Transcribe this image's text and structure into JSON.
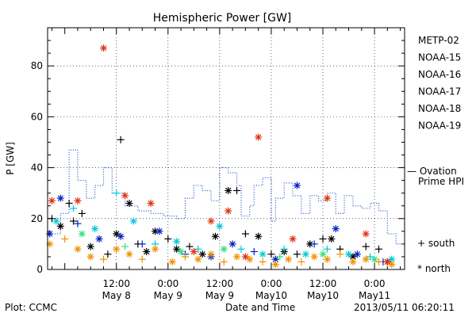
{
  "chart_data": {
    "type": "scatter",
    "title": "Hemispheric Power [GW]",
    "ylabel": "P [GW]",
    "xlabel": "Date and Time",
    "ylim": [
      0,
      95
    ],
    "xlim": [
      "2013-05-07T20:00",
      "2013-05-11T07:00"
    ],
    "yticks": [
      0,
      20,
      40,
      60,
      80
    ],
    "xtick_labels": [
      {
        "time": "2013-05-08T12:00",
        "top": "12:00",
        "bottom": "May 8"
      },
      {
        "time": "2013-05-09T00:00",
        "top": "0:00",
        "bottom": "May 9"
      },
      {
        "time": "2013-05-09T12:00",
        "top": "12:00",
        "bottom": "May 9"
      },
      {
        "time": "2013-05-10T00:00",
        "top": "0:00",
        "bottom": "May10"
      },
      {
        "time": "2013-05-10T12:00",
        "top": "12:00",
        "bottom": "May10"
      },
      {
        "time": "2013-05-11T00:00",
        "top": "0:00",
        "bottom": "May11"
      }
    ],
    "grid": true,
    "legend_position": "right",
    "series": [
      {
        "name": "METP-02",
        "color": "#000000",
        "points": [
          [
            "2013-05-07T21:00",
            20,
            "south"
          ],
          [
            "2013-05-07T23:00",
            17,
            "north"
          ],
          [
            "2013-05-08T01:00",
            26,
            "south"
          ],
          [
            "2013-05-08T02:00",
            19,
            "south"
          ],
          [
            "2013-05-08T04:00",
            22,
            "south"
          ],
          [
            "2013-05-08T06:00",
            9,
            "north"
          ],
          [
            "2013-05-08T10:00",
            6,
            "south"
          ],
          [
            "2013-05-08T12:00",
            14,
            "north"
          ],
          [
            "2013-05-08T13:00",
            51,
            "south"
          ],
          [
            "2013-05-08T15:00",
            26,
            "north"
          ],
          [
            "2013-05-08T17:00",
            10,
            "south"
          ],
          [
            "2013-05-08T19:00",
            7,
            "north"
          ],
          [
            "2013-05-08T21:00",
            15,
            "north"
          ],
          [
            "2013-05-09T00:00",
            12,
            "south"
          ],
          [
            "2013-05-09T02:00",
            8,
            "north"
          ],
          [
            "2013-05-09T05:00",
            9,
            "south"
          ],
          [
            "2013-05-09T08:00",
            6,
            "north"
          ],
          [
            "2013-05-09T11:00",
            13,
            "north"
          ],
          [
            "2013-05-09T14:00",
            31,
            "north"
          ],
          [
            "2013-05-09T16:00",
            31,
            "south"
          ],
          [
            "2013-05-09T18:00",
            14,
            "south"
          ],
          [
            "2013-05-09T21:00",
            13,
            "north"
          ],
          [
            "2013-05-10T00:00",
            6,
            "south"
          ],
          [
            "2013-05-10T03:00",
            7,
            "north"
          ],
          [
            "2013-05-10T06:00",
            6,
            "south"
          ],
          [
            "2013-05-10T09:00",
            10,
            "north"
          ],
          [
            "2013-05-10T12:00",
            12,
            "south"
          ],
          [
            "2013-05-10T14:00",
            12,
            "north"
          ],
          [
            "2013-05-10T16:00",
            8,
            "south"
          ],
          [
            "2013-05-10T19:00",
            5,
            "north"
          ],
          [
            "2013-05-10T22:00",
            9,
            "south"
          ],
          [
            "2013-05-11T01:00",
            8,
            "south"
          ],
          [
            "2013-05-11T03:00",
            3,
            "north"
          ]
        ]
      },
      {
        "name": "NOAA-15",
        "color": "#0020c0",
        "points": [
          [
            "2013-05-07T20:30",
            14,
            "north"
          ],
          [
            "2013-05-07T23:00",
            28,
            "north"
          ],
          [
            "2013-05-08T03:00",
            18,
            "south"
          ],
          [
            "2013-05-08T08:00",
            12,
            "north"
          ],
          [
            "2013-05-08T13:00",
            13,
            "north"
          ],
          [
            "2013-05-08T18:00",
            10,
            "south"
          ],
          [
            "2013-05-08T22:00",
            15,
            "north"
          ],
          [
            "2013-05-09T04:00",
            6,
            "south"
          ],
          [
            "2013-05-09T10:00",
            5,
            "north"
          ],
          [
            "2013-05-09T15:00",
            10,
            "north"
          ],
          [
            "2013-05-09T20:00",
            7,
            "south"
          ],
          [
            "2013-05-10T01:00",
            4,
            "north"
          ],
          [
            "2013-05-10T06:00",
            33,
            "north"
          ],
          [
            "2013-05-10T10:00",
            10,
            "south"
          ],
          [
            "2013-05-10T15:00",
            16,
            "north"
          ],
          [
            "2013-05-10T20:00",
            6,
            "north"
          ],
          [
            "2013-05-11T02:00",
            3,
            "south"
          ]
        ]
      },
      {
        "name": "NOAA-16",
        "color": "#00c8d8",
        "points": [
          [
            "2013-05-07T22:00",
            19,
            "north"
          ],
          [
            "2013-05-08T02:00",
            24,
            "south"
          ],
          [
            "2013-05-08T07:00",
            16,
            "north"
          ],
          [
            "2013-05-08T12:00",
            30,
            "south"
          ],
          [
            "2013-05-08T16:00",
            19,
            "north"
          ],
          [
            "2013-05-08T21:00",
            10,
            "south"
          ],
          [
            "2013-05-09T02:00",
            11,
            "north"
          ],
          [
            "2013-05-09T07:00",
            8,
            "south"
          ],
          [
            "2013-05-09T12:00",
            17,
            "north"
          ],
          [
            "2013-05-09T17:00",
            8,
            "south"
          ],
          [
            "2013-05-09T22:00",
            6,
            "north"
          ],
          [
            "2013-05-10T03:00",
            8,
            "south"
          ],
          [
            "2013-05-10T08:00",
            6,
            "north"
          ],
          [
            "2013-05-10T13:00",
            8,
            "south"
          ],
          [
            "2013-05-10T18:00",
            6,
            "north"
          ],
          [
            "2013-05-10T23:00",
            5,
            "south"
          ],
          [
            "2013-05-11T04:00",
            4,
            "north"
          ]
        ]
      },
      {
        "name": "NOAA-17",
        "color": "#30e080",
        "points": [
          [
            "2013-05-08T04:00",
            14,
            "north"
          ],
          [
            "2013-05-08T14:00",
            9,
            "south"
          ],
          [
            "2013-05-09T03:00",
            7,
            "north"
          ],
          [
            "2013-05-09T13:00",
            8,
            "north"
          ],
          [
            "2013-05-10T02:00",
            5,
            "south"
          ],
          [
            "2013-05-10T12:00",
            6,
            "north"
          ],
          [
            "2013-05-11T00:00",
            4,
            "north"
          ]
        ]
      },
      {
        "name": "NOAA-18",
        "color": "#f09000",
        "points": [
          [
            "2013-05-07T20:30",
            10,
            "north"
          ],
          [
            "2013-05-08T00:00",
            12,
            "south"
          ],
          [
            "2013-05-08T03:00",
            8,
            "north"
          ],
          [
            "2013-05-08T06:00",
            5,
            "north"
          ],
          [
            "2013-05-08T09:00",
            4,
            "south"
          ],
          [
            "2013-05-08T12:00",
            8,
            "north"
          ],
          [
            "2013-05-08T15:00",
            6,
            "north"
          ],
          [
            "2013-05-08T18:00",
            4,
            "south"
          ],
          [
            "2013-05-08T21:00",
            8,
            "north"
          ],
          [
            "2013-05-09T01:00",
            3,
            "north"
          ],
          [
            "2013-05-09T04:00",
            5,
            "south"
          ],
          [
            "2013-05-09T07:00",
            4,
            "north"
          ],
          [
            "2013-05-09T10:00",
            6,
            "north"
          ],
          [
            "2013-05-09T13:00",
            3,
            "south"
          ],
          [
            "2013-05-09T16:00",
            5,
            "north"
          ],
          [
            "2013-05-09T19:00",
            4,
            "north"
          ],
          [
            "2013-05-09T22:00",
            3,
            "south"
          ],
          [
            "2013-05-10T01:00",
            2,
            "north"
          ],
          [
            "2013-05-10T04:00",
            4,
            "north"
          ],
          [
            "2013-05-10T07:00",
            3,
            "south"
          ],
          [
            "2013-05-10T10:00",
            5,
            "north"
          ],
          [
            "2013-05-10T13:00",
            4,
            "north"
          ],
          [
            "2013-05-10T16:00",
            6,
            "south"
          ],
          [
            "2013-05-10T19:00",
            3,
            "north"
          ],
          [
            "2013-05-10T22:00",
            4,
            "north"
          ],
          [
            "2013-05-11T01:00",
            3,
            "south"
          ],
          [
            "2013-05-11T04:00",
            2,
            "north"
          ]
        ]
      },
      {
        "name": "NOAA-19",
        "color": "#e03010",
        "points": [
          [
            "2013-05-07T21:00",
            27,
            "north"
          ],
          [
            "2013-05-08T03:00",
            27,
            "north"
          ],
          [
            "2013-05-08T09:00",
            87,
            "north"
          ],
          [
            "2013-05-08T14:00",
            29,
            "north"
          ],
          [
            "2013-05-08T20:00",
            26,
            "north"
          ],
          [
            "2013-05-09T06:00",
            7,
            "north"
          ],
          [
            "2013-05-09T10:00",
            19,
            "north"
          ],
          [
            "2013-05-09T14:00",
            23,
            "north"
          ],
          [
            "2013-05-09T18:00",
            5,
            "north"
          ],
          [
            "2013-05-09T21:00",
            52,
            "north"
          ],
          [
            "2013-05-10T05:00",
            12,
            "north"
          ],
          [
            "2013-05-10T13:00",
            28,
            "north"
          ],
          [
            "2013-05-10T22:00",
            14,
            "north"
          ],
          [
            "2013-05-11T03:00",
            3,
            "north"
          ]
        ]
      }
    ],
    "ovation": {
      "name": "— Ovation Prime HPI",
      "name_line1": "— Ovation",
      "name_line2": "Prime HPI",
      "color": "#2050d0",
      "steps": [
        [
          "2013-05-07T20:00",
          14
        ],
        [
          "2013-05-07T23:00",
          22
        ],
        [
          "2013-05-08T01:00",
          47
        ],
        [
          "2013-05-08T03:00",
          35
        ],
        [
          "2013-05-08T05:00",
          28
        ],
        [
          "2013-05-08T07:00",
          33
        ],
        [
          "2013-05-08T09:00",
          40
        ],
        [
          "2013-05-08T11:00",
          30
        ],
        [
          "2013-05-08T14:00",
          25
        ],
        [
          "2013-05-08T17:00",
          23
        ],
        [
          "2013-05-08T20:00",
          22
        ],
        [
          "2013-05-08T23:00",
          21
        ],
        [
          "2013-05-09T02:00",
          20
        ],
        [
          "2013-05-09T04:00",
          28
        ],
        [
          "2013-05-09T06:00",
          33
        ],
        [
          "2013-05-09T08:00",
          31
        ],
        [
          "2013-05-09T10:00",
          27
        ],
        [
          "2013-05-09T12:00",
          40
        ],
        [
          "2013-05-09T14:00",
          38
        ],
        [
          "2013-05-09T16:00",
          33
        ],
        [
          "2013-05-09T17:00",
          21
        ],
        [
          "2013-05-09T19:00",
          25
        ],
        [
          "2013-05-09T20:00",
          33
        ],
        [
          "2013-05-09T22:00",
          36
        ],
        [
          "2013-05-10T00:00",
          19
        ],
        [
          "2013-05-10T01:00",
          28
        ],
        [
          "2013-05-10T03:00",
          34
        ],
        [
          "2013-05-10T05:00",
          29
        ],
        [
          "2013-05-10T07:00",
          22
        ],
        [
          "2013-05-10T09:00",
          29
        ],
        [
          "2013-05-10T11:00",
          27
        ],
        [
          "2013-05-10T13:00",
          30
        ],
        [
          "2013-05-10T15:00",
          22
        ],
        [
          "2013-05-10T17:00",
          29
        ],
        [
          "2013-05-10T19:00",
          25
        ],
        [
          "2013-05-10T21:00",
          24
        ],
        [
          "2013-05-10T23:00",
          26
        ],
        [
          "2013-05-11T01:00",
          23
        ],
        [
          "2013-05-11T03:00",
          14
        ],
        [
          "2013-05-11T05:00",
          10
        ],
        [
          "2013-05-11T07:00",
          8
        ]
      ]
    },
    "marker_legend": [
      {
        "symbol": "+",
        "label": "south"
      },
      {
        "symbol": "*",
        "label": "north"
      }
    ]
  },
  "footer": {
    "left": "Plot: CCMC",
    "center": "Date and Time",
    "right": "2013/05/11 06:20:11"
  }
}
